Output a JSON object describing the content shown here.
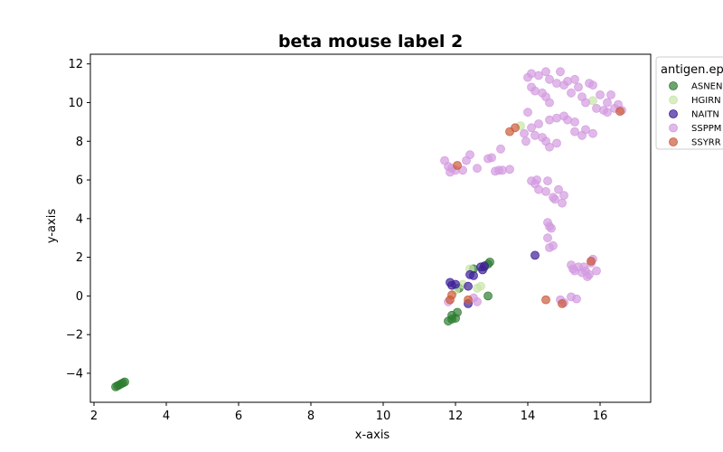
{
  "chart_data": {
    "type": "scatter",
    "title": "beta mouse label 2",
    "xlabel": "x-axis",
    "ylabel": "y-axis",
    "xlim": [
      1.9,
      17.4
    ],
    "ylim": [
      -5.5,
      12.5
    ],
    "xticks": [
      2,
      4,
      6,
      8,
      10,
      12,
      14,
      16
    ],
    "yticks": [
      -4,
      -2,
      0,
      2,
      4,
      6,
      8,
      10,
      12
    ],
    "grid": false,
    "legend": {
      "title": "antigen.ep",
      "placement": "upper-right-outside"
    },
    "series": [
      {
        "name": "ASNEN",
        "color": "#2e7d32",
        "points": [
          [
            2.6,
            -4.7
          ],
          [
            2.65,
            -4.65
          ],
          [
            2.7,
            -4.6
          ],
          [
            2.75,
            -4.55
          ],
          [
            2.8,
            -4.5
          ],
          [
            2.85,
            -4.45
          ],
          [
            11.8,
            -1.3
          ],
          [
            11.9,
            -1.2
          ],
          [
            11.9,
            -1.0
          ],
          [
            12.0,
            -1.15
          ],
          [
            12.05,
            -0.85
          ],
          [
            12.1,
            0.4
          ],
          [
            12.5,
            1.4
          ],
          [
            12.9,
            0.0
          ],
          [
            12.9,
            1.65
          ],
          [
            12.95,
            1.75
          ],
          [
            12.8,
            1.5
          ]
        ]
      },
      {
        "name": "HGIRN",
        "color": "#c8e6a8",
        "points": [
          [
            12.0,
            0.3
          ],
          [
            12.2,
            0.6
          ],
          [
            12.4,
            1.4
          ],
          [
            12.6,
            0.4
          ],
          [
            12.7,
            0.5
          ],
          [
            13.8,
            8.8
          ],
          [
            15.8,
            10.1
          ]
        ]
      },
      {
        "name": "NAITN",
        "color": "#3f1f99",
        "points": [
          [
            11.85,
            0.7
          ],
          [
            11.9,
            0.55
          ],
          [
            12.0,
            0.6
          ],
          [
            12.35,
            0.5
          ],
          [
            12.4,
            1.1
          ],
          [
            12.5,
            1.05
          ],
          [
            12.7,
            1.5
          ],
          [
            12.75,
            1.35
          ],
          [
            12.8,
            1.55
          ],
          [
            12.35,
            -0.4
          ],
          [
            14.2,
            2.1
          ]
        ]
      },
      {
        "name": "SSPPM",
        "color": "#d39be0",
        "points": [
          [
            14.0,
            11.3
          ],
          [
            14.1,
            11.5
          ],
          [
            14.3,
            11.4
          ],
          [
            14.5,
            11.6
          ],
          [
            14.6,
            11.2
          ],
          [
            14.9,
            11.6
          ],
          [
            15.1,
            11.1
          ],
          [
            15.3,
            11.2
          ],
          [
            15.0,
            10.9
          ],
          [
            15.4,
            10.8
          ],
          [
            15.7,
            11.0
          ],
          [
            15.8,
            10.9
          ],
          [
            14.1,
            10.8
          ],
          [
            14.2,
            10.6
          ],
          [
            14.4,
            10.5
          ],
          [
            14.5,
            10.3
          ],
          [
            14.6,
            10.0
          ],
          [
            14.8,
            11.0
          ],
          [
            15.2,
            10.5
          ],
          [
            15.5,
            10.3
          ],
          [
            16.0,
            10.4
          ],
          [
            16.2,
            10.0
          ],
          [
            16.3,
            10.4
          ],
          [
            15.6,
            10.0
          ],
          [
            15.9,
            9.7
          ],
          [
            16.1,
            9.6
          ],
          [
            16.2,
            9.5
          ],
          [
            16.5,
            9.9
          ],
          [
            16.4,
            9.7
          ],
          [
            16.6,
            9.6
          ],
          [
            14.0,
            9.5
          ],
          [
            14.1,
            8.7
          ],
          [
            14.3,
            8.9
          ],
          [
            14.6,
            9.1
          ],
          [
            14.8,
            9.2
          ],
          [
            15.0,
            9.3
          ],
          [
            15.1,
            9.1
          ],
          [
            15.3,
            9.0
          ],
          [
            14.4,
            8.2
          ],
          [
            14.5,
            8.0
          ],
          [
            14.6,
            7.7
          ],
          [
            14.8,
            7.9
          ],
          [
            15.3,
            8.5
          ],
          [
            15.5,
            8.3
          ],
          [
            15.6,
            8.6
          ],
          [
            15.8,
            8.4
          ],
          [
            13.9,
            8.4
          ],
          [
            13.95,
            8.0
          ],
          [
            14.2,
            8.3
          ],
          [
            11.7,
            7.0
          ],
          [
            11.8,
            6.7
          ],
          [
            11.85,
            6.4
          ],
          [
            11.9,
            6.6
          ],
          [
            12.0,
            6.5
          ],
          [
            12.2,
            6.5
          ],
          [
            12.3,
            7.0
          ],
          [
            12.4,
            7.3
          ],
          [
            12.6,
            6.6
          ],
          [
            12.9,
            7.1
          ],
          [
            13.0,
            7.15
          ],
          [
            13.1,
            6.45
          ],
          [
            13.2,
            6.5
          ],
          [
            13.25,
            7.6
          ],
          [
            13.3,
            6.5
          ],
          [
            13.5,
            6.55
          ],
          [
            14.1,
            5.95
          ],
          [
            14.2,
            5.8
          ],
          [
            14.25,
            6.0
          ],
          [
            14.3,
            5.5
          ],
          [
            14.5,
            5.4
          ],
          [
            14.55,
            5.95
          ],
          [
            14.7,
            5.1
          ],
          [
            14.75,
            5.0
          ],
          [
            14.85,
            5.5
          ],
          [
            15.0,
            5.2
          ],
          [
            14.95,
            4.8
          ],
          [
            14.55,
            3.8
          ],
          [
            14.6,
            3.6
          ],
          [
            14.65,
            3.5
          ],
          [
            14.55,
            3.0
          ],
          [
            14.6,
            2.5
          ],
          [
            14.7,
            2.6
          ],
          [
            15.2,
            1.6
          ],
          [
            15.25,
            1.4
          ],
          [
            15.3,
            1.3
          ],
          [
            15.4,
            1.5
          ],
          [
            15.5,
            1.2
          ],
          [
            15.55,
            1.5
          ],
          [
            15.6,
            1.3
          ],
          [
            15.65,
            1.0
          ],
          [
            15.7,
            1.1
          ],
          [
            15.8,
            1.9
          ],
          [
            15.9,
            1.3
          ],
          [
            15.75,
            1.7
          ],
          [
            11.8,
            -0.3
          ],
          [
            12.5,
            -0.1
          ],
          [
            12.6,
            -0.3
          ],
          [
            14.9,
            -0.2
          ],
          [
            15.0,
            -0.35
          ],
          [
            15.2,
            -0.05
          ],
          [
            15.35,
            -0.15
          ]
        ]
      },
      {
        "name": "SSYRR",
        "color": "#cc5b3a",
        "points": [
          [
            11.85,
            -0.2
          ],
          [
            11.9,
            0.05
          ],
          [
            12.35,
            -0.2
          ],
          [
            12.05,
            6.75
          ],
          [
            13.5,
            8.5
          ],
          [
            13.65,
            8.7
          ],
          [
            14.5,
            -0.2
          ],
          [
            14.95,
            -0.4
          ],
          [
            15.75,
            1.8
          ],
          [
            16.55,
            9.55
          ]
        ]
      }
    ]
  }
}
